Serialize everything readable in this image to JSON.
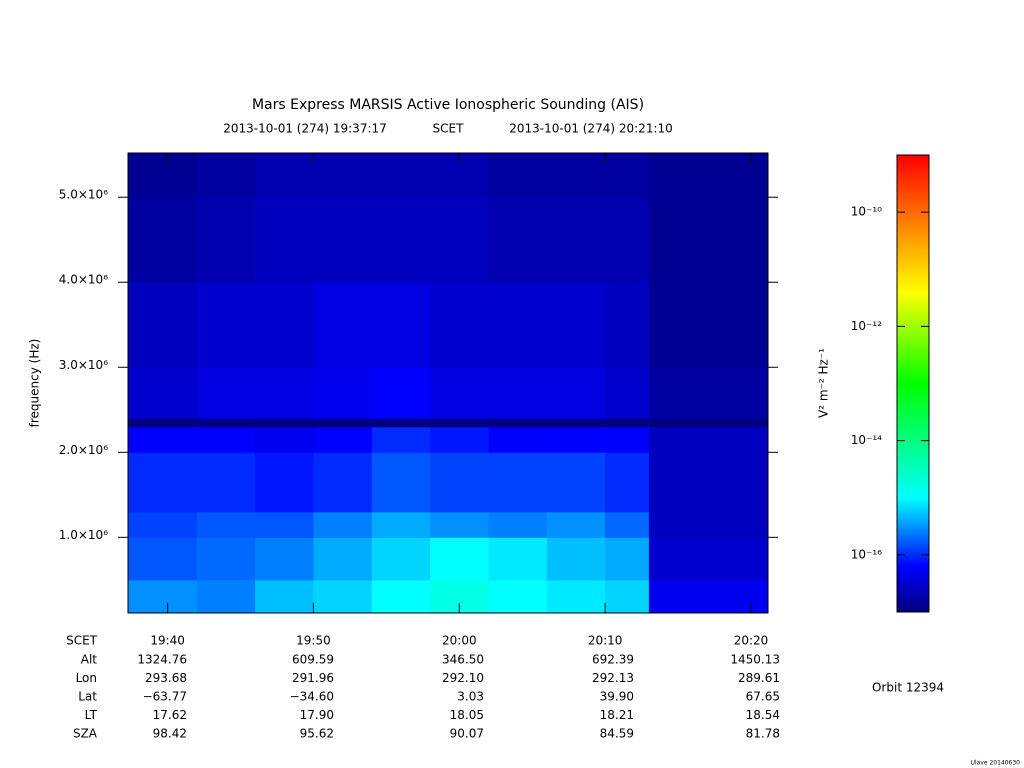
{
  "chart_data": {
    "type": "spectrogram",
    "title": "Mars Express MARSIS Active Ionospheric Sounding (AIS)",
    "subtitle_start": "2013-10-01 (274) 19:37:17",
    "subtitle_mid": "SCET",
    "subtitle_end": "2013-10-01 (274) 20:21:10",
    "ylabel": "frequency (Hz)",
    "xlim": [
      "19:37:17",
      "20:21:10"
    ],
    "xticks": [
      "19:40",
      "19:50",
      "20:00",
      "20:10",
      "20:20"
    ],
    "ylim": [
      110000,
      5520000
    ],
    "yticks": [
      {
        "value": 1000000,
        "label": "1.0×10⁶"
      },
      {
        "value": 2000000,
        "label": "2.0×10⁶"
      },
      {
        "value": 3000000,
        "label": "3.0×10⁶"
      },
      {
        "value": 4000000,
        "label": "4.0×10⁶"
      },
      {
        "value": 5000000,
        "label": "5.0×10⁶"
      }
    ],
    "x_edges": [
      "19:37:17",
      "19:42",
      "19:46",
      "19:50",
      "19:54",
      "19:58",
      "20:02",
      "20:06",
      "20:10",
      "20:13",
      "20:17",
      "20:21:10"
    ],
    "y_edges": [
      110000,
      500000,
      1000000,
      1300000,
      2000000,
      2300000,
      2400000,
      3000000,
      4000000,
      5000000,
      5520000
    ],
    "values": [
      [
        3e-16,
        2.5e-16,
        5e-16,
        6.3e-16,
        1e-15,
        1.6e-15,
        1e-15,
        8e-16,
        6.3e-16,
        5e-17,
        5e-17
      ],
      [
        1.6e-16,
        2e-16,
        2.5e-16,
        4e-16,
        6.3e-16,
        1e-15,
        8e-16,
        5e-16,
        4e-16,
        3e-17,
        3e-17
      ],
      [
        1.3e-16,
        1.6e-16,
        1.6e-16,
        2.5e-16,
        4e-16,
        3e-16,
        2.5e-16,
        3e-16,
        2e-16,
        2.5e-17,
        2.5e-17
      ],
      [
        1e-16,
        1e-16,
        8e-17,
        1e-16,
        1.6e-16,
        1.3e-16,
        1.3e-16,
        1.3e-16,
        1e-16,
        2.5e-17,
        2.5e-17
      ],
      [
        6.3e-17,
        6.3e-17,
        5e-17,
        6.3e-17,
        1e-16,
        8e-17,
        6.3e-17,
        6.3e-17,
        6.3e-17,
        2.5e-17,
        2.5e-17
      ],
      [
        1e-17,
        1e-17,
        1e-17,
        1e-17,
        1e-17,
        1e-17,
        1e-17,
        1e-17,
        1e-17,
        1e-17,
        1e-17
      ],
      [
        3e-17,
        4e-17,
        4e-17,
        5e-17,
        6.3e-17,
        4e-17,
        4e-17,
        4e-17,
        3e-17,
        1.6e-17,
        1.6e-17
      ],
      [
        2.5e-17,
        3e-17,
        3e-17,
        4e-17,
        4e-17,
        3e-17,
        3e-17,
        3e-17,
        2.5e-17,
        1.3e-17,
        1.3e-17
      ],
      [
        1.6e-17,
        2e-17,
        2.5e-17,
        2.5e-17,
        2.5e-17,
        2.5e-17,
        2e-17,
        2e-17,
        2e-17,
        1.3e-17,
        1.3e-17
      ],
      [
        1.3e-17,
        1.6e-17,
        2e-17,
        2e-17,
        2e-17,
        2e-17,
        1.6e-17,
        1.6e-17,
        1.6e-17,
        1.3e-17,
        1.3e-17
      ]
    ],
    "clim": [
      1e-17,
      1e-09
    ],
    "clog": true,
    "cticks": [
      {
        "value": 1e-16,
        "label": "10⁻¹⁶"
      },
      {
        "value": 1e-14,
        "label": "10⁻¹⁴"
      },
      {
        "value": 1e-12,
        "label": "10⁻¹²"
      },
      {
        "value": 1e-10,
        "label": "10⁻¹⁰"
      }
    ],
    "clabel": "V² m⁻² Hz⁻¹",
    "ephemeris_header": "SCET",
    "ephemeris": [
      {
        "label": "Alt",
        "values": [
          "1324.76",
          "609.59",
          "346.50",
          "692.39",
          "1450.13"
        ]
      },
      {
        "label": "Lon",
        "values": [
          "293.68",
          "291.96",
          "292.10",
          "292.13",
          "289.61"
        ]
      },
      {
        "label": "Lat",
        "values": [
          "−63.77",
          "−34.60",
          "3.03",
          "39.90",
          "67.65"
        ]
      },
      {
        "label": "LT",
        "values": [
          "17.62",
          "17.90",
          "18.05",
          "18.21",
          "18.54"
        ]
      },
      {
        "label": "SZA",
        "values": [
          "98.42",
          "95.62",
          "90.07",
          "84.59",
          "81.78"
        ]
      }
    ],
    "orbit": "Orbit 12394",
    "footer": "Ulave 20140630"
  }
}
